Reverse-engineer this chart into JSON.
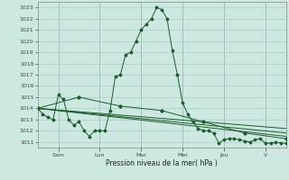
{
  "xlabel": "Pression niveau de la mer( hPa )",
  "background_color": "#cce8e0",
  "grid_color": "#aacccc",
  "line_color": "#1a5c2a",
  "ylim": [
    1010.5,
    1023.5
  ],
  "yticks": [
    1011,
    1012,
    1013,
    1014,
    1015,
    1016,
    1017,
    1018,
    1019,
    1020,
    1021,
    1022,
    1023
  ],
  "day_labels": [
    "Sam",
    "Lun",
    "Mar",
    "Mer",
    "Jeu",
    "V"
  ],
  "day_positions": [
    24,
    72,
    120,
    168,
    216,
    264
  ],
  "xlim": [
    0,
    288
  ],
  "series1_x": [
    0,
    6,
    12,
    18,
    24,
    30,
    36,
    42,
    48,
    54,
    60,
    66,
    72,
    78,
    84,
    90,
    96,
    102,
    108,
    114,
    120,
    126,
    132,
    138,
    144,
    150,
    156,
    162,
    168,
    174,
    180,
    186,
    192,
    198,
    204,
    210,
    216,
    222,
    228,
    234,
    240,
    246,
    252,
    258,
    264,
    270,
    276,
    282,
    288
  ],
  "series1_y": [
    1014.0,
    1013.5,
    1013.2,
    1013.0,
    1015.2,
    1014.8,
    1013.0,
    1012.5,
    1012.8,
    1012.0,
    1011.5,
    1012.0,
    1012.0,
    1012.0,
    1013.8,
    1016.8,
    1017.0,
    1018.8,
    1019.0,
    1020.0,
    1021.0,
    1021.5,
    1022.0,
    1023.0,
    1022.8,
    1022.0,
    1019.2,
    1017.0,
    1014.5,
    1013.5,
    1012.8,
    1012.2,
    1012.0,
    1012.0,
    1011.8,
    1010.9,
    1011.2,
    1011.3,
    1011.3,
    1011.2,
    1011.1,
    1011.0,
    1011.2,
    1011.3,
    1010.9,
    1010.9,
    1011.0,
    1010.9,
    1010.9
  ],
  "series2_x": [
    0,
    48,
    96,
    144,
    192,
    240,
    288
  ],
  "series2_y": [
    1014.0,
    1015.0,
    1014.2,
    1013.8,
    1012.8,
    1011.8,
    1011.3
  ],
  "series3_x": [
    0,
    288
  ],
  "series3_y": [
    1014.0,
    1012.2
  ],
  "series4_x": [
    0,
    288
  ],
  "series4_y": [
    1014.0,
    1011.5
  ],
  "series5_x": [
    0,
    288
  ],
  "series5_y": [
    1014.0,
    1011.8
  ]
}
